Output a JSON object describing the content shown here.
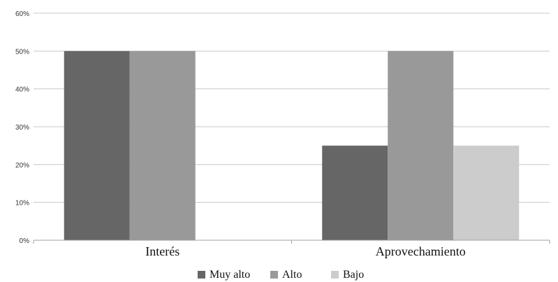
{
  "chart_data": {
    "type": "bar",
    "categories": [
      "Interés",
      "Aprovechamiento"
    ],
    "series": [
      {
        "name": "Muy alto",
        "values": [
          50,
          25
        ],
        "color": "#666666"
      },
      {
        "name": "Alto",
        "values": [
          50,
          50
        ],
        "color": "#999999"
      },
      {
        "name": "Bajo",
        "values": [
          0,
          25
        ],
        "color": "#cccccc"
      }
    ],
    "ylim": [
      0,
      60
    ],
    "yticks": [
      "0%",
      "10%",
      "20%",
      "30%",
      "40%",
      "50%",
      "60%"
    ],
    "grid": true,
    "legend_position": "bottom",
    "title": "",
    "xlabel": "",
    "ylabel": ""
  }
}
